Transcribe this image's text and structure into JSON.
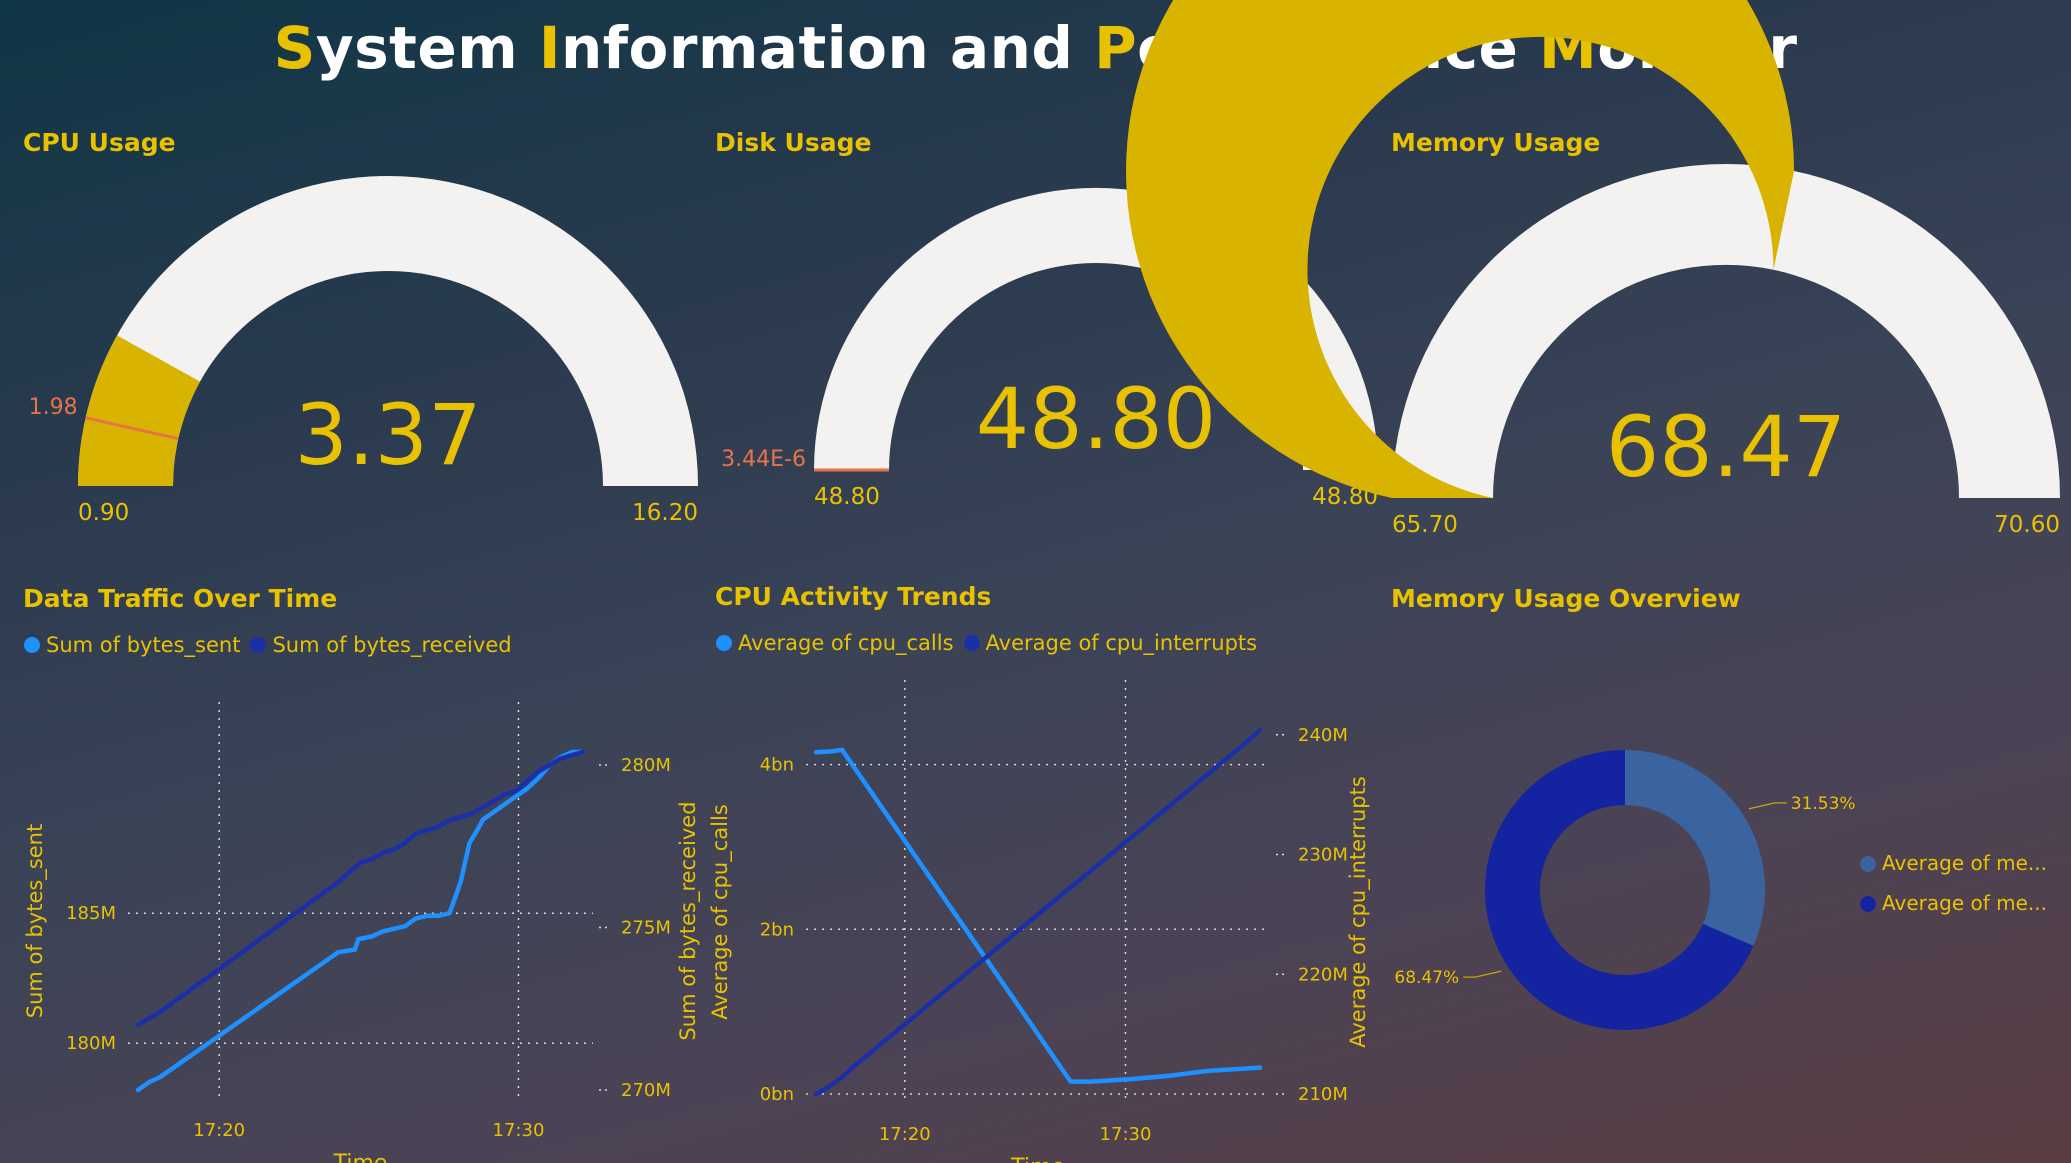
{
  "title": {
    "parts": [
      {
        "text": "S",
        "highlight": true
      },
      {
        "text": "ystem ",
        "highlight": false
      },
      {
        "text": "I",
        "highlight": true
      },
      {
        "text": "nformation and ",
        "highlight": false
      },
      {
        "text": "P",
        "highlight": true
      },
      {
        "text": "erformance ",
        "highlight": false
      },
      {
        "text": "M",
        "highlight": true
      },
      {
        "text": "onitor",
        "highlight": false
      }
    ]
  },
  "colors": {
    "accent": "#e8c200",
    "gauge_fill": "#d8b400",
    "gauge_track": "#f3f2f1",
    "target": "#e8734a",
    "series_light": "#1e90ff",
    "series_dark": "#1a2fa8",
    "donut_light": "#3a64a0",
    "donut_dark": "#1424a0"
  },
  "panels": {
    "cpu_usage": "CPU Usage",
    "disk_usage": "Disk Usage",
    "memory_usage": "Memory Usage",
    "data_traffic": "Data Traffic Over Time",
    "cpu_activity": "CPU Activity Trends",
    "memory_overview": "Memory Usage Overview"
  },
  "legends": {
    "traffic": [
      "Sum of bytes_sent",
      "Sum of bytes_received"
    ],
    "activity": [
      "Average of cpu_calls",
      "Average of cpu_interrupts"
    ],
    "memory": [
      "Average of me...",
      "Average of me..."
    ]
  },
  "chart_data": [
    {
      "type": "gauge",
      "title": "CPU Usage",
      "value": 3.37,
      "value_label": "3.37",
      "min": 0.9,
      "min_label": "0.90",
      "max": 16.2,
      "max_label": "16.20",
      "target": 1.98,
      "target_label": "1.98"
    },
    {
      "type": "gauge",
      "title": "Disk Usage",
      "value": 48.8,
      "value_label": "48.80",
      "min": 48.8,
      "min_label": "48.80",
      "max": 48.8,
      "max_label": "48.80",
      "target": 3.44e-06,
      "target_label": "3.44E-6"
    },
    {
      "type": "gauge",
      "title": "Memory Usage",
      "value": 68.47,
      "value_label": "68.47",
      "min": 65.7,
      "min_label": "65.70",
      "max": 70.6,
      "max_label": "70.60"
    },
    {
      "type": "line",
      "title": "Data Traffic Over Time",
      "xlabel": "Time",
      "ylabel": "Sum of bytes_sent",
      "ylabel2": "Sum of bytes_received",
      "x_ticks": [
        "17:20",
        "17:30"
      ],
      "y_ticks": [
        "180M",
        "185M"
      ],
      "y2_ticks": [
        "270M",
        "275M",
        "280M"
      ],
      "series": [
        {
          "name": "Sum of bytes_sent",
          "axis": "left",
          "points": [
            [
              0,
              178.2
            ],
            [
              1,
              178.5
            ],
            [
              2,
              178.7
            ],
            [
              4,
              179.3
            ],
            [
              6,
              179.9
            ],
            [
              8,
              180.5
            ],
            [
              10,
              181.1
            ],
            [
              12,
              181.7
            ],
            [
              14,
              182.3
            ],
            [
              16,
              182.9
            ],
            [
              18,
              183.5
            ],
            [
              19.5,
              183.6
            ],
            [
              19.8,
              184.0
            ],
            [
              21,
              184.1
            ],
            [
              22,
              184.3
            ],
            [
              23,
              184.4
            ],
            [
              24,
              184.5
            ],
            [
              25,
              184.8
            ],
            [
              26,
              184.9
            ],
            [
              27,
              184.9
            ],
            [
              28,
              185.0
            ],
            [
              28.5,
              185.6
            ],
            [
              29,
              186.2
            ],
            [
              29.8,
              187.7
            ],
            [
              30.5,
              188.2
            ],
            [
              31,
              188.6
            ],
            [
              32,
              188.9
            ],
            [
              33,
              189.2
            ],
            [
              34,
              189.5
            ],
            [
              35,
              189.8
            ],
            [
              36,
              190.2
            ],
            [
              37,
              190.7
            ],
            [
              38,
              191.0
            ],
            [
              39,
              191.2
            ],
            [
              40,
              191.2
            ]
          ]
        },
        {
          "name": "Sum of bytes_received",
          "axis": "right",
          "points": [
            [
              0,
              272.0
            ],
            [
              1,
              272.2
            ],
            [
              2,
              272.4
            ],
            [
              4,
              272.9
            ],
            [
              6,
              273.4
            ],
            [
              8,
              273.9
            ],
            [
              10,
              274.4
            ],
            [
              12,
              274.9
            ],
            [
              14,
              275.4
            ],
            [
              16,
              275.9
            ],
            [
              18,
              276.4
            ],
            [
              19,
              276.7
            ],
            [
              20,
              277.0
            ],
            [
              21,
              277.1
            ],
            [
              22,
              277.3
            ],
            [
              23,
              277.4
            ],
            [
              24,
              277.6
            ],
            [
              25,
              277.9
            ],
            [
              26,
              278.0
            ],
            [
              27,
              278.1
            ],
            [
              28,
              278.3
            ],
            [
              29,
              278.4
            ],
            [
              30,
              278.5
            ],
            [
              31,
              278.7
            ],
            [
              32,
              278.9
            ],
            [
              33,
              279.1
            ],
            [
              34,
              279.2
            ],
            [
              35,
              279.5
            ],
            [
              36,
              279.8
            ],
            [
              37,
              280.0
            ],
            [
              38,
              280.2
            ],
            [
              39,
              280.3
            ],
            [
              40,
              280.4
            ]
          ]
        }
      ]
    },
    {
      "type": "line",
      "title": "CPU Activity Trends",
      "xlabel": "Time",
      "ylabel": "Average of cpu_calls",
      "ylabel2": "Average of cpu_interrupts",
      "x_ticks": [
        "17:20",
        "17:30"
      ],
      "y_ticks": [
        "0bn",
        "2bn",
        "4bn"
      ],
      "y2_ticks": [
        "210M",
        "220M",
        "230M",
        "240M"
      ],
      "series": [
        {
          "name": "Average of cpu_calls",
          "axis": "left",
          "points": [
            [
              0,
              4.15
            ],
            [
              1.2,
              4.16
            ],
            [
              2,
              4.18
            ],
            [
              19.5,
              0.15
            ],
            [
              21,
              0.15
            ],
            [
              24,
              0.18
            ],
            [
              27,
              0.22
            ],
            [
              30,
              0.28
            ],
            [
              32,
              0.3
            ],
            [
              34,
              0.32
            ]
          ]
        },
        {
          "name": "Average of cpu_interrupts",
          "axis": "right",
          "points": [
            [
              0,
              210.0
            ],
            [
              1,
              210.6
            ],
            [
              2,
              211.4
            ],
            [
              3,
              212.4
            ],
            [
              5,
              214.2
            ],
            [
              7,
              216.0
            ],
            [
              9,
              217.8
            ],
            [
              11,
              219.6
            ],
            [
              13,
              221.4
            ],
            [
              15,
              223.2
            ],
            [
              17,
              225.0
            ],
            [
              19,
              226.8
            ],
            [
              21,
              228.6
            ],
            [
              23,
              230.4
            ],
            [
              25,
              232.2
            ],
            [
              27,
              234.0
            ],
            [
              29,
              235.8
            ],
            [
              31,
              237.6
            ],
            [
              33,
              239.4
            ],
            [
              34,
              240.4
            ]
          ]
        }
      ]
    },
    {
      "type": "pie",
      "title": "Memory Usage Overview",
      "slices": [
        {
          "name": "Average of me...",
          "value": 31.53,
          "label": "31.53%"
        },
        {
          "name": "Average of me...",
          "value": 68.47,
          "label": "68.47%"
        }
      ]
    }
  ]
}
